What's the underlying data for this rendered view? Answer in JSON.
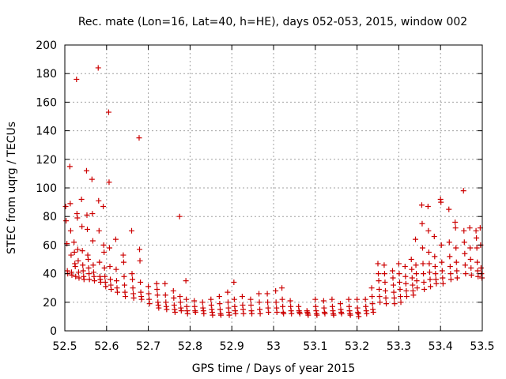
{
  "chart_data": {
    "type": "scatter",
    "title": "Rec. mate (Lon=16, Lat=40, h=HE), days 052-053, 2015, window 002",
    "xlabel": "GPS time / Days of year 2015",
    "ylabel": "STEC from uqrg / TECUs",
    "xlim": [
      52.5,
      53.5
    ],
    "ylim": [
      0,
      200
    ],
    "xticks": [
      "52.5",
      "52.6",
      "52.7",
      "52.8",
      "52.9",
      "53",
      "53.1",
      "53.2",
      "53.3",
      "53.4",
      "53.5"
    ],
    "yticks": [
      "0",
      "20",
      "40",
      "60",
      "80",
      "100",
      "120",
      "140",
      "160",
      "180",
      "200"
    ],
    "grid": true,
    "marker": "+",
    "color": "#cc0000",
    "points": [
      [
        52.502,
        87
      ],
      [
        52.503,
        77
      ],
      [
        52.505,
        61
      ],
      [
        52.506,
        42
      ],
      [
        52.507,
        40
      ],
      [
        52.512,
        115
      ],
      [
        52.513,
        89
      ],
      [
        52.514,
        70
      ],
      [
        52.515,
        53
      ],
      [
        52.516,
        41
      ],
      [
        52.517,
        39
      ],
      [
        52.522,
        62
      ],
      [
        52.523,
        55
      ],
      [
        52.524,
        47
      ],
      [
        52.525,
        45
      ],
      [
        52.526,
        38
      ],
      [
        52.528,
        176
      ],
      [
        52.529,
        82
      ],
      [
        52.53,
        79
      ],
      [
        52.531,
        57
      ],
      [
        52.532,
        49
      ],
      [
        52.533,
        41
      ],
      [
        52.534,
        37
      ],
      [
        52.54,
        92
      ],
      [
        52.541,
        73
      ],
      [
        52.542,
        56
      ],
      [
        52.543,
        46
      ],
      [
        52.544,
        42
      ],
      [
        52.545,
        38
      ],
      [
        52.546,
        36
      ],
      [
        52.552,
        112
      ],
      [
        52.553,
        81
      ],
      [
        52.554,
        71
      ],
      [
        52.555,
        53
      ],
      [
        52.556,
        50
      ],
      [
        52.557,
        44
      ],
      [
        52.558,
        40
      ],
      [
        52.559,
        36
      ],
      [
        52.565,
        106
      ],
      [
        52.566,
        82
      ],
      [
        52.567,
        63
      ],
      [
        52.568,
        46
      ],
      [
        52.569,
        41
      ],
      [
        52.57,
        38
      ],
      [
        52.571,
        35
      ],
      [
        52.58,
        184
      ],
      [
        52.581,
        91
      ],
      [
        52.582,
        70
      ],
      [
        52.583,
        48
      ],
      [
        52.584,
        38
      ],
      [
        52.585,
        36
      ],
      [
        52.586,
        34
      ],
      [
        52.592,
        87
      ],
      [
        52.593,
        60
      ],
      [
        52.594,
        55
      ],
      [
        52.595,
        44
      ],
      [
        52.596,
        38
      ],
      [
        52.597,
        34
      ],
      [
        52.598,
        31
      ],
      [
        52.605,
        153
      ],
      [
        52.606,
        104
      ],
      [
        52.607,
        58
      ],
      [
        52.608,
        45
      ],
      [
        52.609,
        36
      ],
      [
        52.61,
        32
      ],
      [
        52.611,
        29
      ],
      [
        52.622,
        64
      ],
      [
        52.623,
        43
      ],
      [
        52.624,
        35
      ],
      [
        52.625,
        30
      ],
      [
        52.626,
        27
      ],
      [
        52.64,
        53
      ],
      [
        52.641,
        48
      ],
      [
        52.642,
        38
      ],
      [
        52.643,
        32
      ],
      [
        52.644,
        27
      ],
      [
        52.645,
        24
      ],
      [
        52.66,
        70
      ],
      [
        52.661,
        40
      ],
      [
        52.662,
        36
      ],
      [
        52.663,
        30
      ],
      [
        52.664,
        26
      ],
      [
        52.665,
        23
      ],
      [
        52.678,
        135
      ],
      [
        52.679,
        57
      ],
      [
        52.68,
        49
      ],
      [
        52.681,
        34
      ],
      [
        52.682,
        27
      ],
      [
        52.683,
        24
      ],
      [
        52.684,
        22
      ],
      [
        52.7,
        31
      ],
      [
        52.701,
        26
      ],
      [
        52.702,
        22
      ],
      [
        52.703,
        19
      ],
      [
        52.72,
        33
      ],
      [
        52.721,
        29
      ],
      [
        52.722,
        25
      ],
      [
        52.723,
        20
      ],
      [
        52.724,
        18
      ],
      [
        52.725,
        16
      ],
      [
        52.74,
        33
      ],
      [
        52.741,
        25
      ],
      [
        52.742,
        20
      ],
      [
        52.743,
        17
      ],
      [
        52.744,
        15
      ],
      [
        52.76,
        28
      ],
      [
        52.761,
        23
      ],
      [
        52.762,
        18
      ],
      [
        52.763,
        15
      ],
      [
        52.764,
        13
      ],
      [
        52.775,
        80
      ],
      [
        52.776,
        24
      ],
      [
        52.777,
        20
      ],
      [
        52.778,
        16
      ],
      [
        52.779,
        14
      ],
      [
        52.79,
        35
      ],
      [
        52.791,
        22
      ],
      [
        52.792,
        17
      ],
      [
        52.793,
        14
      ],
      [
        52.794,
        12
      ],
      [
        52.81,
        21
      ],
      [
        52.811,
        17
      ],
      [
        52.812,
        14
      ],
      [
        52.813,
        13
      ],
      [
        52.83,
        20
      ],
      [
        52.831,
        16
      ],
      [
        52.832,
        14
      ],
      [
        52.833,
        12
      ],
      [
        52.85,
        22
      ],
      [
        52.851,
        18
      ],
      [
        52.852,
        15
      ],
      [
        52.853,
        13
      ],
      [
        52.854,
        11
      ],
      [
        52.87,
        24
      ],
      [
        52.871,
        19
      ],
      [
        52.872,
        15
      ],
      [
        52.873,
        12
      ],
      [
        52.874,
        11
      ],
      [
        52.89,
        27
      ],
      [
        52.891,
        20
      ],
      [
        52.892,
        16
      ],
      [
        52.893,
        13
      ],
      [
        52.894,
        11
      ],
      [
        52.905,
        34
      ],
      [
        52.906,
        22
      ],
      [
        52.907,
        17
      ],
      [
        52.908,
        14
      ],
      [
        52.909,
        12
      ],
      [
        52.925,
        24
      ],
      [
        52.926,
        18
      ],
      [
        52.927,
        15
      ],
      [
        52.928,
        12
      ],
      [
        52.945,
        22
      ],
      [
        52.946,
        18
      ],
      [
        52.947,
        14
      ],
      [
        52.948,
        12
      ],
      [
        52.965,
        26
      ],
      [
        52.966,
        20
      ],
      [
        52.967,
        15
      ],
      [
        52.968,
        12
      ],
      [
        52.985,
        26
      ],
      [
        52.986,
        20
      ],
      [
        52.987,
        16
      ],
      [
        52.988,
        13
      ],
      [
        53.005,
        28
      ],
      [
        53.006,
        20
      ],
      [
        53.007,
        16
      ],
      [
        53.008,
        13
      ],
      [
        53.02,
        30
      ],
      [
        53.021,
        22
      ],
      [
        53.022,
        17
      ],
      [
        53.023,
        13
      ],
      [
        53.024,
        12
      ],
      [
        53.04,
        21
      ],
      [
        53.041,
        17
      ],
      [
        53.042,
        14
      ],
      [
        53.043,
        12
      ],
      [
        53.06,
        17
      ],
      [
        53.061,
        14
      ],
      [
        53.062,
        13
      ],
      [
        53.063,
        12
      ],
      [
        53.08,
        14
      ],
      [
        53.081,
        13
      ],
      [
        53.082,
        12
      ],
      [
        53.083,
        11
      ],
      [
        53.1,
        22
      ],
      [
        53.101,
        17
      ],
      [
        53.102,
        14
      ],
      [
        53.103,
        12
      ],
      [
        53.104,
        11
      ],
      [
        53.12,
        21
      ],
      [
        53.121,
        16
      ],
      [
        53.122,
        13
      ],
      [
        53.123,
        12
      ],
      [
        53.14,
        22
      ],
      [
        53.141,
        17
      ],
      [
        53.142,
        14
      ],
      [
        53.143,
        12
      ],
      [
        53.144,
        11
      ],
      [
        53.16,
        19
      ],
      [
        53.161,
        15
      ],
      [
        53.162,
        13
      ],
      [
        53.163,
        12
      ],
      [
        53.18,
        22
      ],
      [
        53.181,
        17
      ],
      [
        53.182,
        14
      ],
      [
        53.183,
        12
      ],
      [
        53.184,
        11
      ],
      [
        53.2,
        22
      ],
      [
        53.201,
        16
      ],
      [
        53.202,
        13
      ],
      [
        53.203,
        12
      ],
      [
        53.204,
        10
      ],
      [
        53.22,
        22
      ],
      [
        53.221,
        17
      ],
      [
        53.222,
        14
      ],
      [
        53.223,
        12
      ],
      [
        53.235,
        30
      ],
      [
        53.236,
        24
      ],
      [
        53.237,
        19
      ],
      [
        53.238,
        15
      ],
      [
        53.239,
        13
      ],
      [
        53.25,
        47
      ],
      [
        53.251,
        40
      ],
      [
        53.252,
        35
      ],
      [
        53.253,
        29
      ],
      [
        53.254,
        24
      ],
      [
        53.255,
        20
      ],
      [
        53.265,
        46
      ],
      [
        53.266,
        40
      ],
      [
        53.267,
        34
      ],
      [
        53.268,
        28
      ],
      [
        53.269,
        23
      ],
      [
        53.27,
        19
      ],
      [
        53.285,
        42
      ],
      [
        53.286,
        37
      ],
      [
        53.287,
        32
      ],
      [
        53.288,
        27
      ],
      [
        53.289,
        23
      ],
      [
        53.29,
        19
      ],
      [
        53.3,
        47
      ],
      [
        53.301,
        40
      ],
      [
        53.302,
        34
      ],
      [
        53.303,
        29
      ],
      [
        53.304,
        24
      ],
      [
        53.305,
        20
      ],
      [
        53.315,
        45
      ],
      [
        53.316,
        38
      ],
      [
        53.317,
        33
      ],
      [
        53.318,
        28
      ],
      [
        53.319,
        24
      ],
      [
        53.33,
        50
      ],
      [
        53.331,
        43
      ],
      [
        53.332,
        37
      ],
      [
        53.333,
        32
      ],
      [
        53.334,
        28
      ],
      [
        53.335,
        25
      ],
      [
        53.34,
        64
      ],
      [
        53.341,
        46
      ],
      [
        53.342,
        40
      ],
      [
        53.343,
        35
      ],
      [
        53.344,
        30
      ],
      [
        53.355,
        88
      ],
      [
        53.356,
        75
      ],
      [
        53.357,
        58
      ],
      [
        53.358,
        47
      ],
      [
        53.359,
        40
      ],
      [
        53.36,
        34
      ],
      [
        53.361,
        29
      ],
      [
        53.37,
        87
      ],
      [
        53.371,
        70
      ],
      [
        53.372,
        55
      ],
      [
        53.373,
        47
      ],
      [
        53.374,
        41
      ],
      [
        53.375,
        36
      ],
      [
        53.376,
        31
      ],
      [
        53.385,
        66
      ],
      [
        53.386,
        52
      ],
      [
        53.387,
        45
      ],
      [
        53.388,
        40
      ],
      [
        53.389,
        36
      ],
      [
        53.39,
        33
      ],
      [
        53.4,
        92
      ],
      [
        53.401,
        90
      ],
      [
        53.402,
        60
      ],
      [
        53.403,
        48
      ],
      [
        53.404,
        42
      ],
      [
        53.405,
        37
      ],
      [
        53.406,
        33
      ],
      [
        53.42,
        85
      ],
      [
        53.421,
        62
      ],
      [
        53.422,
        52
      ],
      [
        53.423,
        45
      ],
      [
        53.424,
        40
      ],
      [
        53.425,
        36
      ],
      [
        53.435,
        76
      ],
      [
        53.436,
        72
      ],
      [
        53.437,
        58
      ],
      [
        53.438,
        48
      ],
      [
        53.439,
        42
      ],
      [
        53.44,
        37
      ],
      [
        53.455,
        98
      ],
      [
        53.456,
        70
      ],
      [
        53.457,
        62
      ],
      [
        53.458,
        54
      ],
      [
        53.459,
        46
      ],
      [
        53.46,
        40
      ],
      [
        53.47,
        72
      ],
      [
        53.471,
        58
      ],
      [
        53.472,
        50
      ],
      [
        53.473,
        44
      ],
      [
        53.474,
        39
      ],
      [
        53.485,
        70
      ],
      [
        53.486,
        65
      ],
      [
        53.487,
        58
      ],
      [
        53.488,
        48
      ],
      [
        53.489,
        42
      ],
      [
        53.49,
        38
      ],
      [
        53.495,
        72
      ],
      [
        53.496,
        60
      ],
      [
        53.497,
        44
      ],
      [
        53.498,
        40
      ],
      [
        53.499,
        37
      ]
    ]
  }
}
